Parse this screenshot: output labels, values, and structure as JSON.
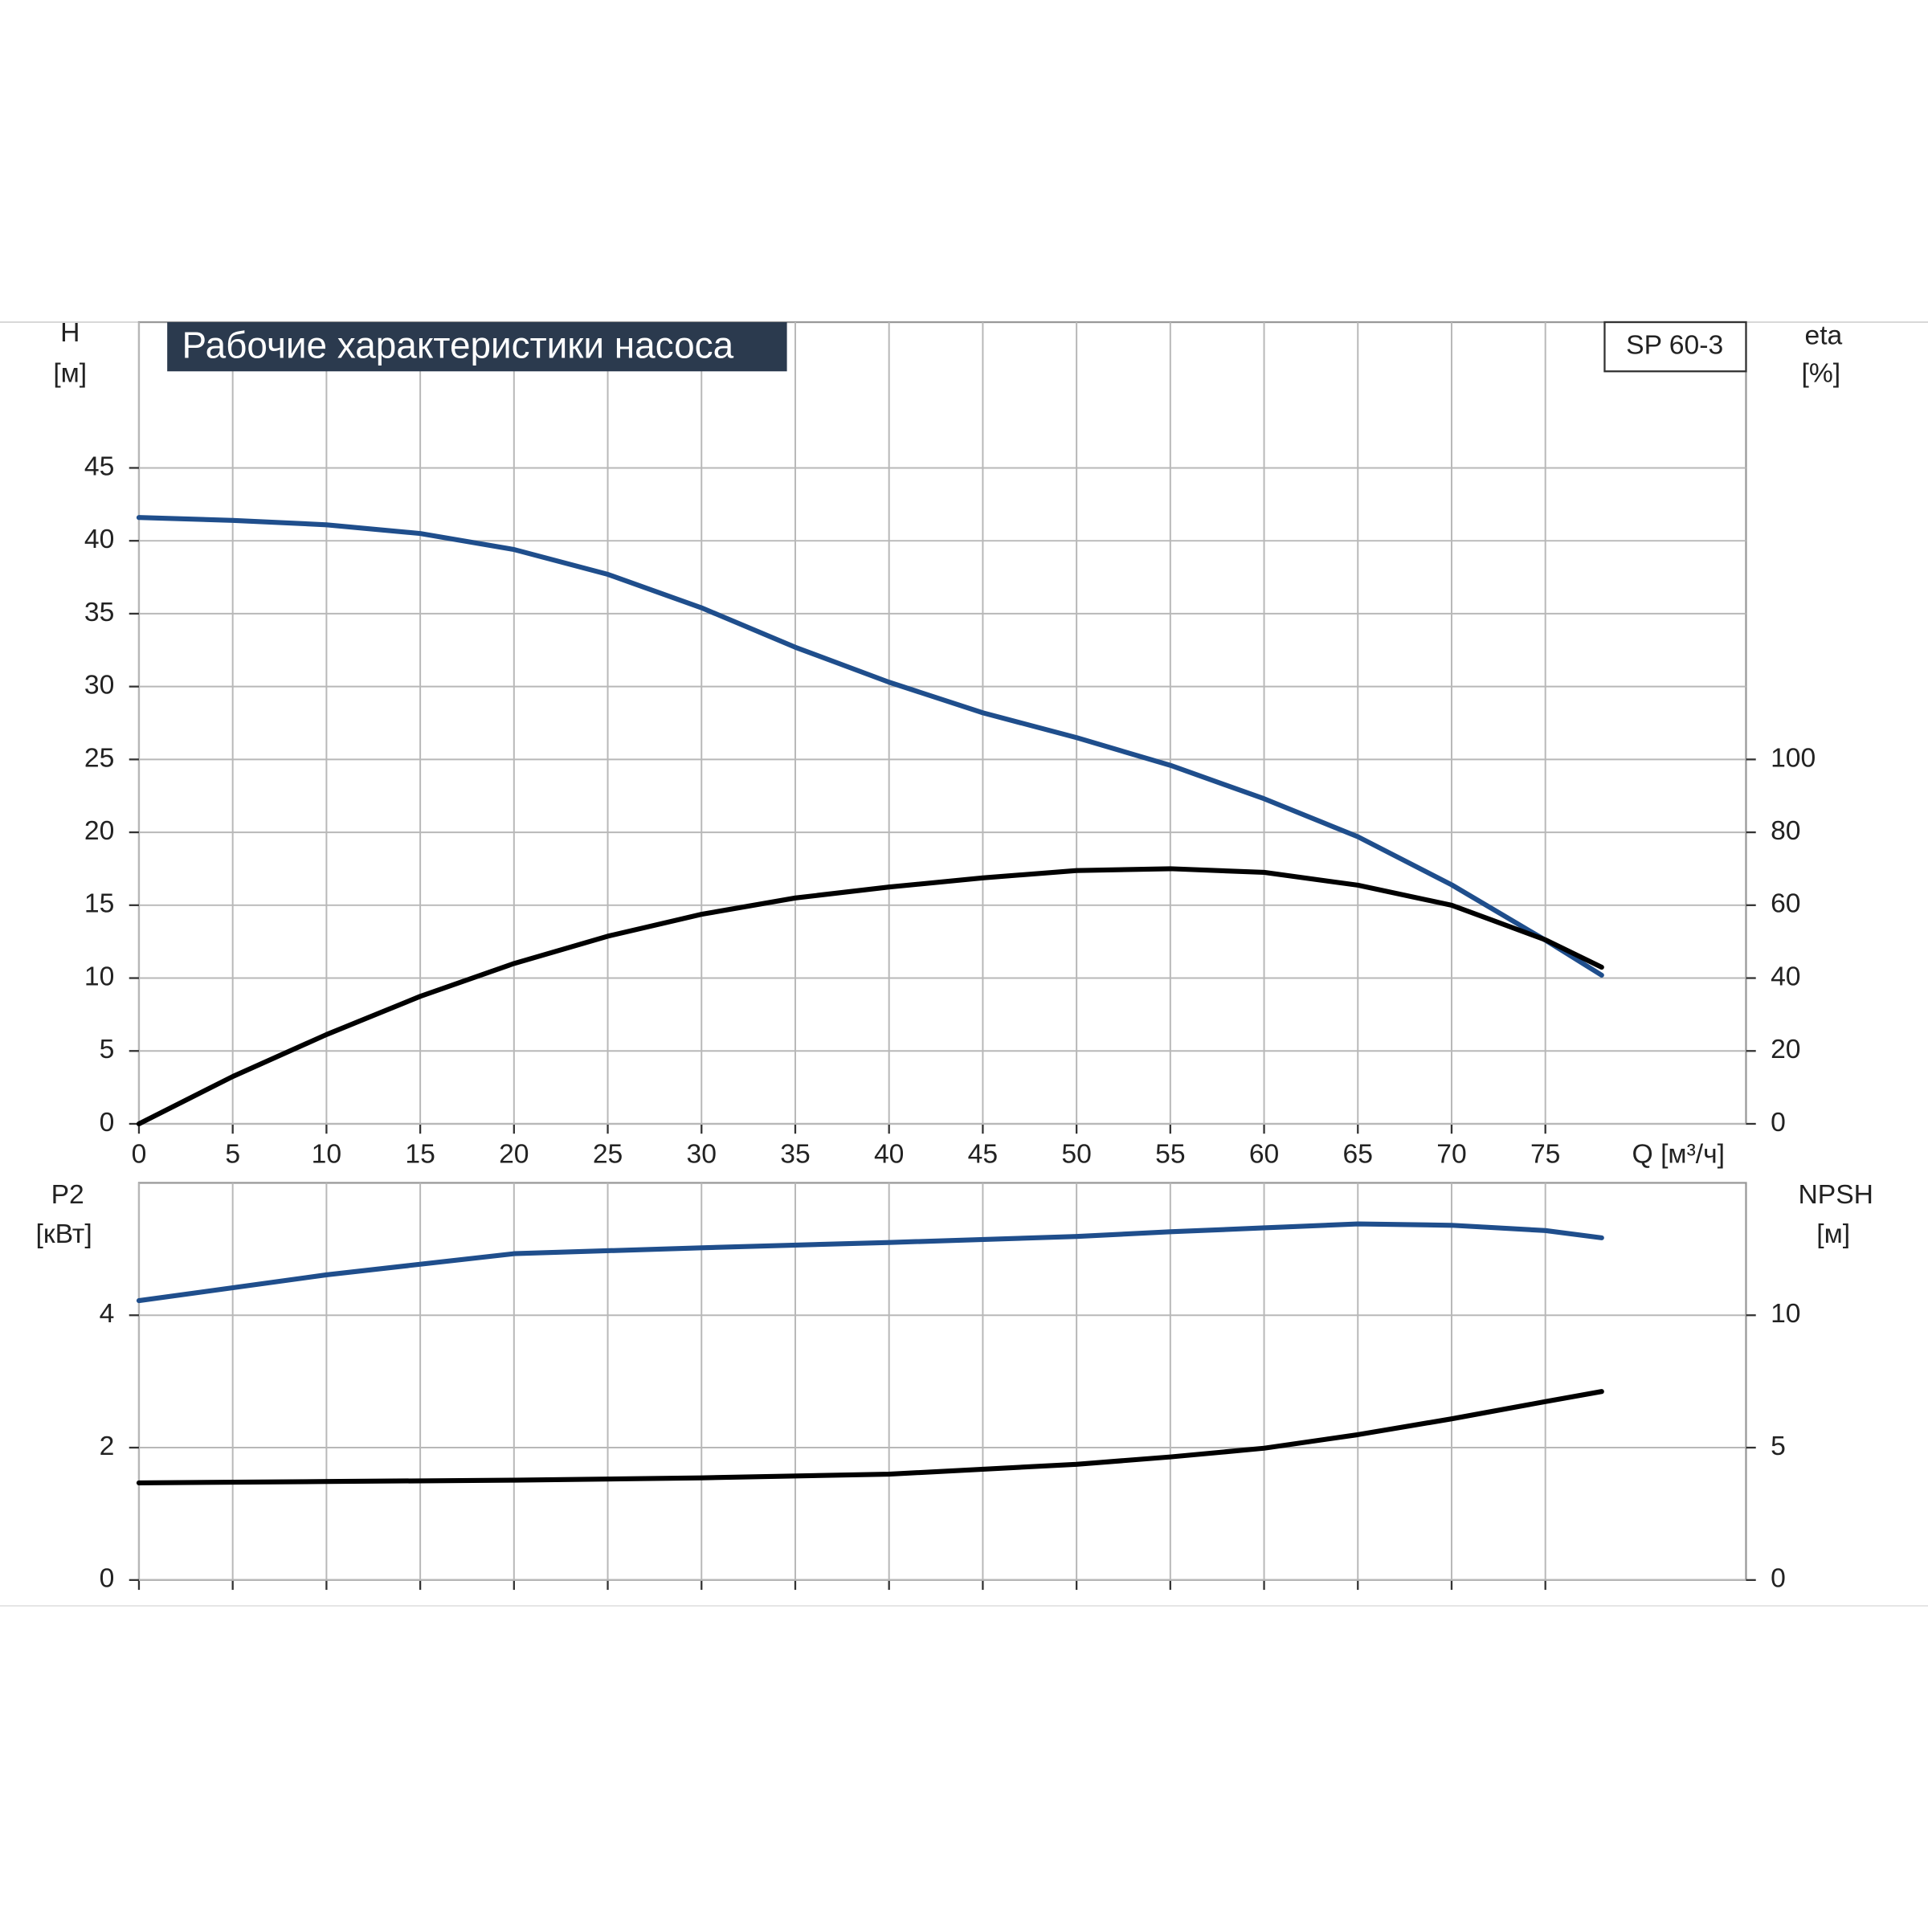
{
  "chart_data": [
    {
      "type": "line",
      "title": "Рабочие характеристики насоса",
      "annotation": "SP 60-3",
      "xlabel": "Q [м³/ч]",
      "ylabel": "H",
      "yunit": "[м]",
      "y2label": "eta",
      "y2unit": "[%]",
      "x": [
        0,
        5,
        10,
        15,
        20,
        25,
        30,
        35,
        40,
        45,
        50,
        55,
        60,
        65,
        70,
        75,
        78
      ],
      "series": [
        {
          "name": "H",
          "color": "#1f4e8c",
          "values": [
            41.6,
            41.4,
            41.1,
            40.5,
            39.4,
            37.7,
            35.4,
            32.7,
            30.3,
            28.2,
            26.5,
            24.6,
            22.3,
            19.7,
            16.4,
            12.6,
            10.2
          ]
        },
        {
          "name": "eta",
          "color": "#000000",
          "axis": "y2",
          "values": [
            0,
            13,
            24.5,
            35,
            44,
            51.5,
            57.5,
            62,
            65,
            67.5,
            69.5,
            70,
            69,
            65.5,
            60,
            50.5,
            43
          ]
        }
      ],
      "xlim": [
        0,
        85.7
      ],
      "xticks": [
        0,
        5,
        10,
        15,
        20,
        25,
        30,
        35,
        40,
        45,
        50,
        55,
        60,
        65,
        70,
        75
      ],
      "ylim": [
        0,
        55
      ],
      "yticks": [
        0,
        5,
        10,
        15,
        20,
        25,
        30,
        35,
        40,
        45
      ],
      "y2lim": [
        0,
        220
      ],
      "y2ticks": [
        0,
        20,
        40,
        60,
        80,
        100
      ],
      "grid": true
    },
    {
      "type": "line",
      "ylabel": "P2",
      "yunit": "[кВт]",
      "y2label": "NPSH",
      "y2unit": "[м]",
      "x": [
        0,
        10,
        20,
        30,
        40,
        50,
        55,
        60,
        65,
        70,
        75,
        78
      ],
      "series": [
        {
          "name": "P2",
          "color": "#1f4e8c",
          "values": [
            4.22,
            4.61,
            4.93,
            5.02,
            5.1,
            5.19,
            5.26,
            5.32,
            5.38,
            5.36,
            5.28,
            5.17
          ]
        },
        {
          "name": "NPSH",
          "color": "#000000",
          "axis": "y2",
          "values": [
            3.67,
            3.72,
            3.77,
            3.86,
            4.0,
            4.37,
            4.65,
            4.98,
            5.49,
            6.09,
            6.74,
            7.12
          ]
        }
      ],
      "xlim": [
        0,
        85.7
      ],
      "ylim": [
        0,
        6
      ],
      "yticks": [
        0,
        2,
        4
      ],
      "y2lim": [
        0,
        15
      ],
      "y2ticks": [
        0,
        5,
        10
      ],
      "grid": true
    }
  ]
}
